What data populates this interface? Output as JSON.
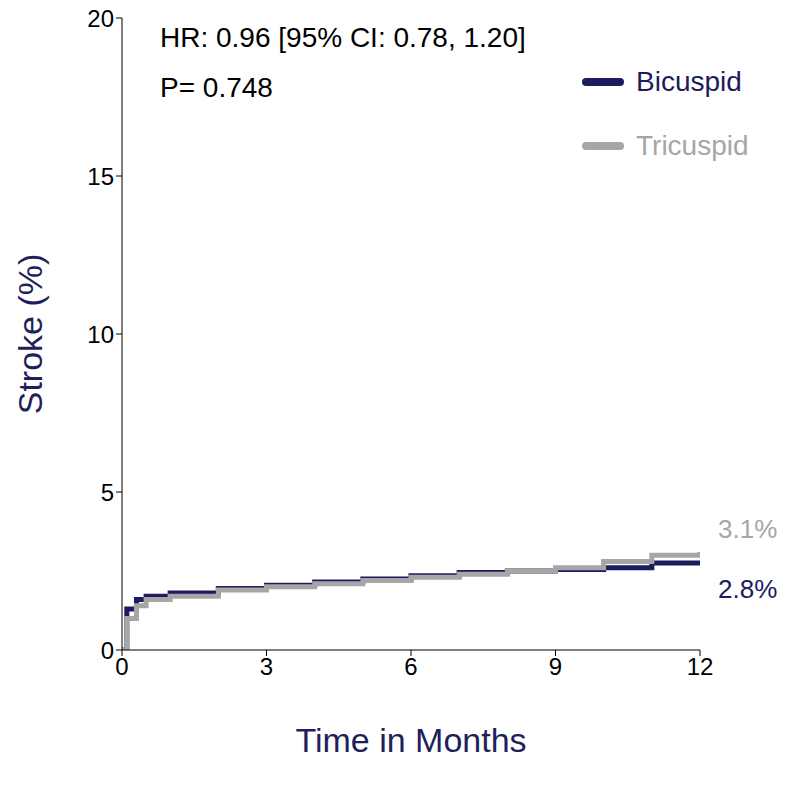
{
  "chart_data": {
    "type": "line",
    "ylabel": "Stroke (%)",
    "xlabel": "Time in Months",
    "annotations": [
      "HR: 0.96 [95% CI: 0.78, 1.20]",
      "P= 0.748"
    ],
    "xlim": [
      0,
      12
    ],
    "xticks": [
      0,
      3,
      6,
      9,
      12
    ],
    "ylim": [
      0,
      20
    ],
    "yticks": [
      0,
      5,
      10,
      15,
      20
    ],
    "legend": "upper right",
    "data_labels": true,
    "line_style": "step",
    "series": [
      {
        "name": "Bicuspid",
        "color": "#1b1b5e",
        "x": [
          0,
          0.1,
          0.3,
          0.5,
          1,
          2,
          3,
          4,
          5,
          6,
          7,
          8,
          9,
          10,
          11,
          12
        ],
        "values": [
          0,
          1.3,
          1.6,
          1.7,
          1.8,
          1.95,
          2.05,
          2.15,
          2.25,
          2.35,
          2.45,
          2.5,
          2.55,
          2.6,
          2.75,
          2.8
        ],
        "value_labels": [
          null,
          null,
          null,
          null,
          null,
          null,
          null,
          null,
          null,
          null,
          null,
          null,
          null,
          null,
          null,
          "2.8%"
        ]
      },
      {
        "name": "Tricuspid",
        "color": "#a6a6a6",
        "x": [
          0,
          0.1,
          0.3,
          0.5,
          1,
          2,
          3,
          4,
          5,
          6,
          7,
          8,
          9,
          10,
          11,
          12
        ],
        "values": [
          0,
          1.0,
          1.4,
          1.6,
          1.7,
          1.9,
          2.0,
          2.1,
          2.2,
          2.3,
          2.4,
          2.5,
          2.6,
          2.8,
          3.0,
          3.1
        ],
        "value_labels": [
          null,
          null,
          null,
          null,
          null,
          null,
          null,
          null,
          null,
          null,
          null,
          null,
          null,
          null,
          null,
          "3.1%"
        ]
      }
    ]
  }
}
